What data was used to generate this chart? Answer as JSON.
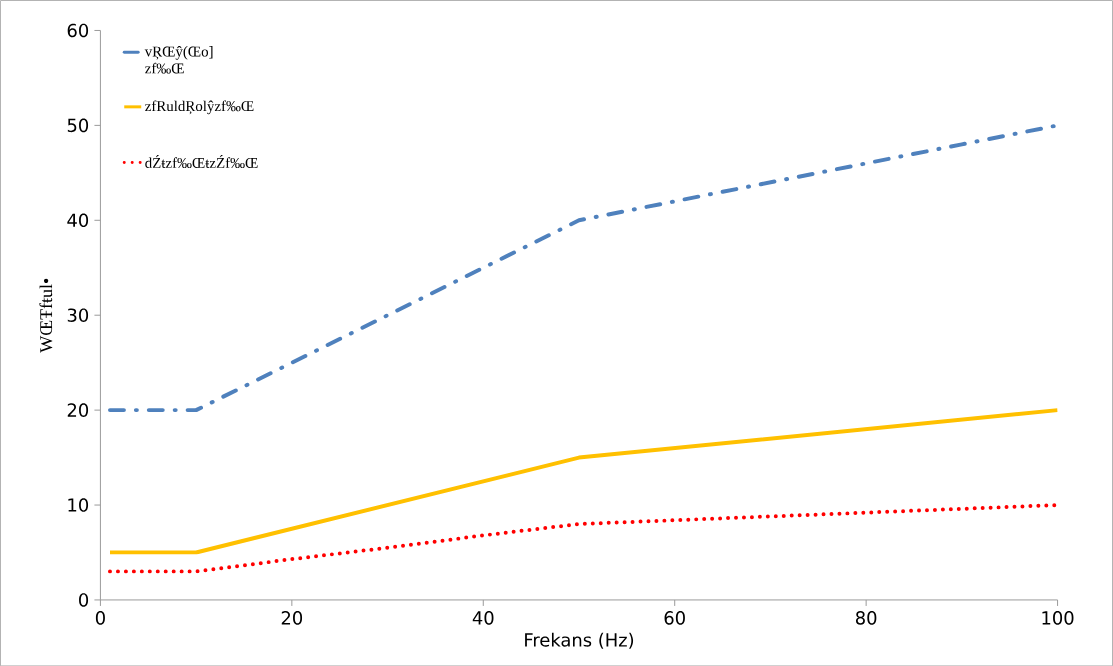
{
  "chart_data": {
    "type": "line",
    "xlabel": "Frekans (Hz)",
    "ylabel": "WŒŦfŧul•",
    "series": [
      {
        "name": "vŖŒŷ(Œo] zf‰Œ",
        "color": "#4f81bd",
        "line_style": "dashdot",
        "x": [
          1,
          10,
          20,
          30,
          40,
          50,
          60,
          70,
          80,
          90,
          100
        ],
        "values": [
          20,
          20,
          25,
          30,
          35,
          40,
          42,
          44,
          46,
          48,
          50
        ]
      },
      {
        "name": "zfRuldŖolŷzf‰Œ",
        "color": "#ffc000",
        "line_style": "solid",
        "x": [
          1,
          10,
          50,
          100
        ],
        "values": [
          5,
          5,
          15,
          20
        ]
      },
      {
        "name": "dŹŧzf‰ŒŧzŹf‰Œ",
        "color": "#ff0000",
        "line_style": "dotted",
        "x": [
          1,
          10,
          20,
          30,
          40,
          50,
          60,
          70,
          80,
          90,
          100
        ],
        "values": [
          3,
          3,
          4.3,
          5.5,
          6.8,
          8,
          8.4,
          8.8,
          9.2,
          9.6,
          10
        ]
      }
    ],
    "xlim": [
      0,
      100
    ],
    "ylim": [
      0,
      60
    ],
    "xticks": [
      0,
      20,
      40,
      60,
      80,
      100
    ],
    "yticks": [
      0,
      10,
      20,
      30,
      40,
      50,
      60
    ],
    "grid": false,
    "legend": "top left",
    "marker": "none"
  }
}
